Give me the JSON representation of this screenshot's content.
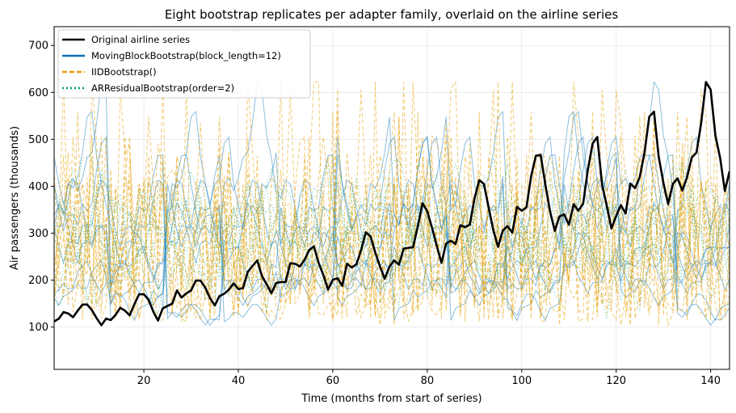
{
  "chart_data": {
    "type": "line",
    "title": "Eight bootstrap replicates per adapter family, overlaid on the airline series",
    "xlabel": "Time (months from start of series)",
    "ylabel": "Air passengers (thousands)",
    "xlim": [
      1,
      144
    ],
    "ylim": [
      10,
      740
    ],
    "xticks": [
      20,
      40,
      60,
      80,
      100,
      120,
      140
    ],
    "yticks": [
      100,
      200,
      300,
      400,
      500,
      600,
      700
    ],
    "grid": true,
    "legend_position": "top-left",
    "legend": [
      {
        "label": "Original airline series",
        "color": "#000000",
        "style": "solid"
      },
      {
        "label": "MovingBlockBootstrap(block_length=12)",
        "color": "#0072b2",
        "style": "solid"
      },
      {
        "label": "IIDBootstrap()",
        "color": "#e69f00",
        "style": "dashed"
      },
      {
        "label": "ARResidualBootstrap(order=2)",
        "color": "#009e73",
        "style": "dotted"
      }
    ],
    "series": [
      {
        "name": "Original airline series",
        "color": "#000000",
        "style": "solid",
        "x_start": 1,
        "values": [
          112,
          118,
          132,
          129,
          121,
          135,
          148,
          148,
          136,
          119,
          104,
          118,
          115,
          126,
          141,
          135,
          125,
          149,
          170,
          170,
          158,
          133,
          114,
          140,
          145,
          150,
          178,
          163,
          172,
          178,
          199,
          199,
          184,
          162,
          146,
          166,
          171,
          180,
          193,
          181,
          183,
          218,
          230,
          242,
          209,
          191,
          172,
          194,
          196,
          196,
          236,
          235,
          229,
          243,
          264,
          272,
          237,
          211,
          180,
          201,
          204,
          188,
          235,
          227,
          234,
          264,
          302,
          293,
          259,
          229,
          203,
          229,
          242,
          233,
          267,
          269,
          270,
          315,
          364,
          347,
          312,
          274,
          237,
          278,
          284,
          277,
          317,
          313,
          318,
          374,
          413,
          405,
          355,
          306,
          271,
          306,
          315,
          301,
          356,
          348,
          355,
          422,
          465,
          467,
          404,
          347,
          305,
          336,
          340,
          318,
          362,
          348,
          363,
          435,
          491,
          505,
          404,
          359,
          310,
          337,
          360,
          342,
          406,
          396,
          420,
          472,
          548,
          559,
          463,
          407,
          362,
          405,
          417,
          391,
          419,
          461,
          472,
          535,
          622,
          606,
          508,
          461,
          390,
          432
        ]
      }
    ],
    "bootstrap_families": [
      {
        "name": "MovingBlockBootstrap(block_length=12)",
        "color": "#0072b2",
        "style": "solid",
        "replicates": 8
      },
      {
        "name": "IIDBootstrap()",
        "color": "#e69f00",
        "style": "dashed",
        "replicates": 8
      },
      {
        "name": "ARResidualBootstrap(order=2)",
        "color": "#009e73",
        "style": "dotted",
        "replicates": 8
      }
    ]
  }
}
